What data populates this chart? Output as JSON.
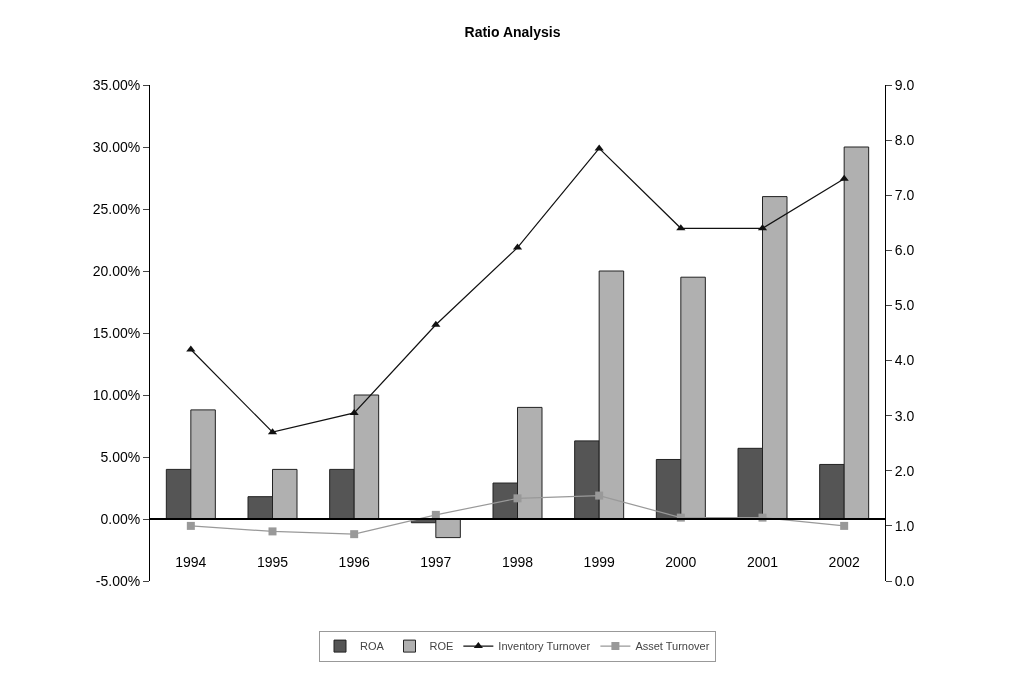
{
  "chart_data": {
    "type": "bar",
    "title": "Ratio Analysis",
    "categories": [
      "1994",
      "1995",
      "1996",
      "1997",
      "1998",
      "1999",
      "2000",
      "2001",
      "2002"
    ],
    "series": [
      {
        "name": "ROA",
        "color": "#555555",
        "values": [
          4.0,
          1.8,
          4.0,
          -0.3,
          2.9,
          6.3,
          4.8,
          5.7,
          4.4
        ]
      },
      {
        "name": "ROE",
        "color": "#b0b0b0",
        "values": [
          8.8,
          4.0,
          10.0,
          -1.5,
          9.0,
          20.0,
          19.5,
          26.0,
          30.0
        ]
      },
      {
        "name": "Inventory Turnover",
        "type": "line",
        "axis": "y2",
        "marker": "triangle",
        "color": "#111111",
        "values": [
          4.2,
          2.7,
          3.05,
          4.65,
          6.05,
          7.85,
          6.4,
          6.4,
          7.3
        ]
      },
      {
        "name": "Asset Turnover",
        "type": "line",
        "axis": "y2",
        "marker": "square",
        "color": "#999999",
        "values": [
          1.0,
          0.9,
          0.85,
          1.2,
          1.5,
          1.55,
          1.15,
          1.15,
          1.0
        ]
      }
    ],
    "ylim": [
      -5,
      35
    ],
    "yticks": [
      {
        "value": -5,
        "label": "-5.00%"
      },
      {
        "value": 0,
        "label": "0.00%"
      },
      {
        "value": 5,
        "label": "5.00%"
      },
      {
        "value": 10,
        "label": "10.00%"
      },
      {
        "value": 15,
        "label": "15.00%"
      },
      {
        "value": 20,
        "label": "20.00%"
      },
      {
        "value": 25,
        "label": "25.00%"
      },
      {
        "value": 30,
        "label": "30.00%"
      },
      {
        "value": 35,
        "label": "35.00%"
      }
    ],
    "y2lim": [
      0,
      9
    ],
    "y2ticks": [
      {
        "value": 0,
        "label": "0.0"
      },
      {
        "value": 1,
        "label": "1.0"
      },
      {
        "value": 2,
        "label": "2.0"
      },
      {
        "value": 3,
        "label": "3.0"
      },
      {
        "value": 4,
        "label": "4.0"
      },
      {
        "value": 5,
        "label": "5.0"
      },
      {
        "value": 6,
        "label": "6.0"
      },
      {
        "value": 7,
        "label": "7.0"
      },
      {
        "value": 8,
        "label": "8.0"
      },
      {
        "value": 9,
        "label": "9.0"
      }
    ],
    "legend": "bottom",
    "line_style": "solid"
  }
}
